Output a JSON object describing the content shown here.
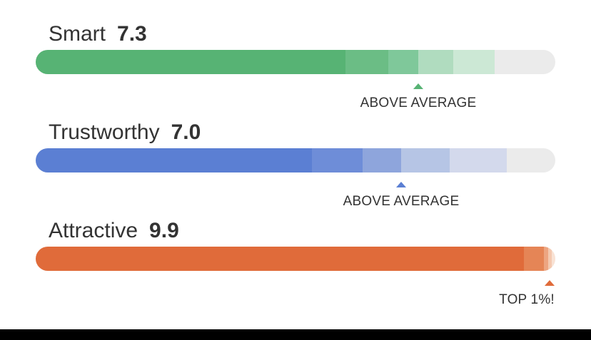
{
  "metrics": [
    {
      "label": "Smart",
      "score": "7.3",
      "badge": "ABOVE AVERAGE",
      "color": "#57b374",
      "position_percent": 73,
      "tiers": [
        "#57b374",
        "#6bbd85",
        "#7fc89a",
        "#b0dcbf",
        "#cce8d5",
        "#ebebeb"
      ]
    },
    {
      "label": "Trustworthy",
      "score": "7.0",
      "badge": "ABOVE AVERAGE",
      "color": "#5b7fd3",
      "position_percent": 70,
      "tiers": [
        "#5b7fd3",
        "#6e8dd8",
        "#8ea5dc",
        "#b6c5e5",
        "#d3d9ec",
        "#ebebeb"
      ]
    },
    {
      "label": "Attractive",
      "score": "9.9",
      "badge": "TOP 1%!",
      "color": "#e06b3a",
      "position_percent": 99,
      "tiers": [
        "#e06b3a",
        "#e58556",
        "#eda581",
        "#f4c9b0",
        "#f9e2d4",
        "#ebebeb"
      ]
    }
  ]
}
